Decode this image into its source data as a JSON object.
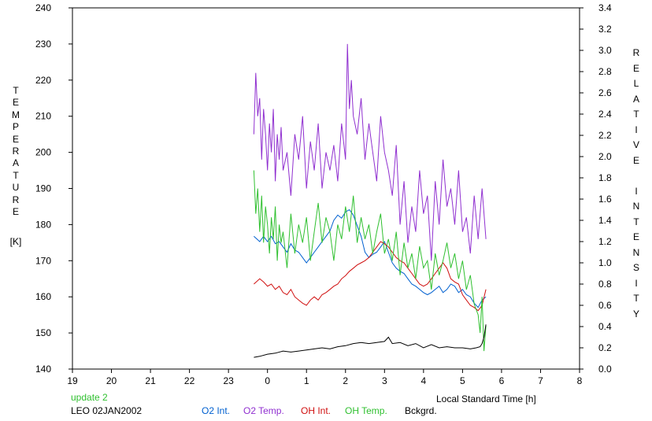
{
  "chart_data": {
    "type": "line",
    "x_axis": {
      "label": "Local Standard Time [h]",
      "range": [
        19,
        32
      ],
      "tick_values": [
        19,
        20,
        21,
        22,
        23,
        24,
        25,
        26,
        27,
        28,
        29,
        30,
        31,
        32
      ],
      "tick_labels": [
        "19",
        "20",
        "21",
        "22",
        "23",
        "0",
        "1",
        "2",
        "3",
        "4",
        "5",
        "6",
        "7",
        "8"
      ]
    },
    "y_left": {
      "label": "TEMPERATURE",
      "unit": "[K]",
      "range": [
        140,
        240
      ],
      "ticks": [
        140,
        150,
        160,
        170,
        180,
        190,
        200,
        210,
        220,
        230,
        240
      ]
    },
    "y_right": {
      "label": "RELATIVE INTENSITY",
      "range": [
        0.0,
        3.4
      ],
      "ticks": [
        "0.0",
        "0.2",
        "0.4",
        "0.6",
        "0.8",
        "1.0",
        "1.2",
        "1.4",
        "1.6",
        "1.8",
        "2.0",
        "2.2",
        "2.4",
        "2.6",
        "2.8",
        "3.0",
        "3.2",
        "3.4"
      ]
    },
    "grid": false,
    "footer": {
      "update": "update 2",
      "station": "LEO 02JAN2002"
    },
    "series": [
      {
        "name": "O2 Int.",
        "axis": "right",
        "color": "#0060d0",
        "x": [
          23.65,
          23.8,
          23.9,
          24.0,
          24.1,
          24.2,
          24.3,
          24.4,
          24.5,
          24.6,
          24.7,
          24.8,
          24.9,
          25.0,
          25.1,
          25.2,
          25.3,
          25.4,
          25.5,
          25.6,
          25.7,
          25.8,
          25.9,
          26.0,
          26.1,
          26.2,
          26.3,
          26.4,
          26.5,
          26.6,
          26.7,
          26.8,
          26.9,
          27.0,
          27.1,
          27.2,
          27.3,
          27.4,
          27.5,
          27.6,
          27.7,
          27.8,
          27.9,
          28.0,
          28.1,
          28.2,
          28.3,
          28.4,
          28.5,
          28.6,
          28.7,
          28.8,
          28.9,
          29.0,
          29.1,
          29.2,
          29.3,
          29.4,
          29.5,
          29.6
        ],
        "y": [
          1.25,
          1.2,
          1.25,
          1.2,
          1.25,
          1.18,
          1.2,
          1.15,
          1.1,
          1.18,
          1.12,
          1.1,
          1.05,
          1.0,
          1.05,
          1.1,
          1.15,
          1.2,
          1.25,
          1.3,
          1.4,
          1.45,
          1.42,
          1.48,
          1.5,
          1.45,
          1.35,
          1.25,
          1.1,
          1.05,
          1.08,
          1.1,
          1.15,
          1.2,
          1.1,
          1.0,
          0.95,
          0.92,
          0.9,
          0.85,
          0.8,
          0.78,
          0.75,
          0.72,
          0.7,
          0.72,
          0.75,
          0.78,
          0.72,
          0.75,
          0.8,
          0.78,
          0.72,
          0.75,
          0.7,
          0.68,
          0.62,
          0.58,
          0.65,
          0.68
        ]
      },
      {
        "name": "O2 Temp.",
        "axis": "left",
        "color": "#9030d0",
        "x": [
          23.65,
          23.7,
          23.75,
          23.8,
          23.85,
          23.9,
          23.95,
          24.0,
          24.05,
          24.1,
          24.15,
          24.2,
          24.25,
          24.3,
          24.35,
          24.4,
          24.5,
          24.6,
          24.7,
          24.8,
          24.9,
          25.0,
          25.1,
          25.2,
          25.3,
          25.4,
          25.5,
          25.6,
          25.7,
          25.8,
          25.9,
          26.0,
          26.05,
          26.1,
          26.15,
          26.2,
          26.3,
          26.4,
          26.5,
          26.6,
          26.7,
          26.8,
          26.9,
          27.0,
          27.1,
          27.2,
          27.3,
          27.4,
          27.5,
          27.6,
          27.7,
          27.8,
          27.9,
          28.0,
          28.1,
          28.2,
          28.3,
          28.4,
          28.5,
          28.6,
          28.7,
          28.8,
          28.9,
          29.0,
          29.1,
          29.2,
          29.3,
          29.4,
          29.5,
          29.6
        ],
        "y": [
          205,
          222,
          210,
          215,
          198,
          212,
          205,
          195,
          208,
          200,
          212,
          192,
          205,
          198,
          207,
          195,
          200,
          188,
          205,
          198,
          210,
          190,
          203,
          195,
          208,
          190,
          200,
          195,
          202,
          192,
          208,
          198,
          230,
          212,
          220,
          210,
          205,
          215,
          198,
          208,
          200,
          192,
          210,
          200,
          195,
          188,
          202,
          180,
          192,
          175,
          185,
          178,
          195,
          183,
          188,
          170,
          192,
          180,
          198,
          185,
          190,
          180,
          195,
          178,
          182,
          172,
          188,
          176,
          190,
          176
        ]
      },
      {
        "name": "OH Int.",
        "axis": "right",
        "color": "#d01010",
        "x": [
          23.65,
          23.8,
          23.9,
          24.0,
          24.1,
          24.2,
          24.3,
          24.4,
          24.5,
          24.6,
          24.7,
          24.8,
          24.9,
          25.0,
          25.1,
          25.2,
          25.3,
          25.4,
          25.5,
          25.6,
          25.7,
          25.8,
          25.9,
          26.0,
          26.1,
          26.2,
          26.3,
          26.4,
          26.5,
          26.6,
          26.7,
          26.8,
          26.9,
          27.0,
          27.1,
          27.2,
          27.3,
          27.4,
          27.5,
          27.6,
          27.7,
          27.8,
          27.9,
          28.0,
          28.1,
          28.2,
          28.3,
          28.4,
          28.5,
          28.6,
          28.7,
          28.8,
          28.9,
          29.0,
          29.1,
          29.2,
          29.3,
          29.4,
          29.5,
          29.6
        ],
        "y": [
          0.8,
          0.85,
          0.82,
          0.78,
          0.8,
          0.75,
          0.78,
          0.72,
          0.7,
          0.75,
          0.68,
          0.65,
          0.62,
          0.6,
          0.65,
          0.68,
          0.65,
          0.7,
          0.72,
          0.75,
          0.78,
          0.8,
          0.85,
          0.88,
          0.92,
          0.95,
          0.98,
          1.0,
          1.02,
          1.05,
          1.1,
          1.15,
          1.2,
          1.18,
          1.15,
          1.1,
          1.05,
          1.02,
          1.0,
          0.95,
          0.9,
          0.85,
          0.8,
          0.78,
          0.8,
          0.85,
          0.9,
          0.95,
          1.0,
          0.95,
          0.85,
          0.82,
          0.8,
          0.7,
          0.65,
          0.6,
          0.58,
          0.55,
          0.6,
          0.75
        ]
      },
      {
        "name": "OH Temp.",
        "axis": "left",
        "color": "#30c030",
        "x": [
          23.65,
          23.7,
          23.75,
          23.8,
          23.85,
          23.9,
          23.95,
          24.0,
          24.05,
          24.1,
          24.15,
          24.2,
          24.25,
          24.3,
          24.35,
          24.4,
          24.5,
          24.6,
          24.7,
          24.8,
          24.9,
          25.0,
          25.1,
          25.2,
          25.3,
          25.4,
          25.5,
          25.6,
          25.7,
          25.8,
          25.9,
          26.0,
          26.1,
          26.2,
          26.3,
          26.4,
          26.5,
          26.6,
          26.7,
          26.8,
          26.9,
          27.0,
          27.1,
          27.2,
          27.3,
          27.4,
          27.5,
          27.6,
          27.7,
          27.8,
          27.9,
          28.0,
          28.1,
          28.2,
          28.3,
          28.4,
          28.5,
          28.6,
          28.7,
          28.8,
          28.9,
          29.0,
          29.1,
          29.2,
          29.3,
          29.4,
          29.45,
          29.5,
          29.55,
          29.6
        ],
        "y": [
          195,
          183,
          190,
          178,
          188,
          175,
          185,
          180,
          172,
          182,
          176,
          185,
          170,
          180,
          175,
          178,
          168,
          183,
          172,
          180,
          175,
          182,
          170,
          178,
          186,
          175,
          182,
          178,
          170,
          180,
          176,
          185,
          178,
          188,
          175,
          182,
          176,
          180,
          172,
          178,
          183,
          172,
          176,
          170,
          178,
          166,
          175,
          168,
          172,
          165,
          174,
          168,
          170,
          162,
          172,
          166,
          170,
          175,
          168,
          172,
          165,
          170,
          162,
          166,
          158,
          155,
          150,
          160,
          145,
          152
        ]
      },
      {
        "name": "Bckgrd.",
        "axis": "right",
        "color": "#000000",
        "x": [
          23.65,
          23.8,
          24.0,
          24.2,
          24.4,
          24.6,
          24.8,
          25.0,
          25.2,
          25.4,
          25.6,
          25.8,
          26.0,
          26.2,
          26.4,
          26.6,
          26.8,
          27.0,
          27.1,
          27.2,
          27.4,
          27.6,
          27.8,
          28.0,
          28.2,
          28.4,
          28.6,
          28.8,
          29.0,
          29.2,
          29.35,
          29.45,
          29.5,
          29.55,
          29.6
        ],
        "y": [
          0.11,
          0.12,
          0.14,
          0.15,
          0.17,
          0.16,
          0.17,
          0.18,
          0.19,
          0.2,
          0.19,
          0.21,
          0.22,
          0.24,
          0.25,
          0.24,
          0.25,
          0.26,
          0.3,
          0.24,
          0.25,
          0.22,
          0.24,
          0.2,
          0.23,
          0.2,
          0.21,
          0.2,
          0.2,
          0.19,
          0.2,
          0.21,
          0.24,
          0.3,
          0.42
        ]
      }
    ]
  }
}
